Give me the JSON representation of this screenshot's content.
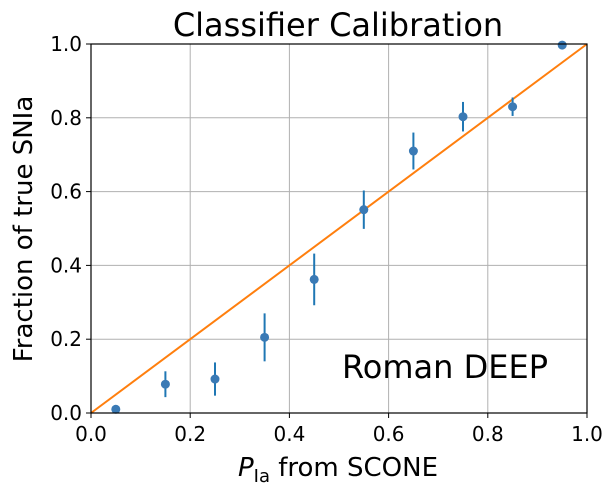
{
  "chart_data": {
    "type": "scatter",
    "title": "Classifier Calibration",
    "xlabel_symbol": "P",
    "xlabel_subscript": "Ia",
    "xlabel_rest": " from SCONE",
    "ylabel": "Fraction of true SNIa",
    "annotation": "Roman DEEP",
    "xlim": [
      0.0,
      1.0
    ],
    "ylim": [
      0.0,
      1.0
    ],
    "grid": true,
    "xticks": [
      "0.0",
      "0.2",
      "0.4",
      "0.6",
      "0.8",
      "1.0"
    ],
    "yticks": [
      "0.0",
      "0.2",
      "0.4",
      "0.6",
      "0.8",
      "1.0"
    ],
    "points": [
      {
        "x": 0.05,
        "y": 0.01,
        "err": 0.0
      },
      {
        "x": 0.15,
        "y": 0.078,
        "err": 0.035
      },
      {
        "x": 0.25,
        "y": 0.092,
        "err": 0.045
      },
      {
        "x": 0.35,
        "y": 0.205,
        "err": 0.065
      },
      {
        "x": 0.45,
        "y": 0.362,
        "err": 0.07
      },
      {
        "x": 0.55,
        "y": 0.551,
        "err": 0.052
      },
      {
        "x": 0.65,
        "y": 0.71,
        "err": 0.05
      },
      {
        "x": 0.75,
        "y": 0.803,
        "err": 0.04
      },
      {
        "x": 0.85,
        "y": 0.83,
        "err": 0.025
      },
      {
        "x": 0.95,
        "y": 0.997,
        "err": 0.0
      }
    ],
    "reference_line": {
      "x": [
        0.0,
        1.0
      ],
      "y": [
        0.0,
        1.0
      ]
    },
    "colors": {
      "points": "#3a7ab5",
      "errorbars": "#1f77b4",
      "reference_line": "#ff7f0e",
      "grid": "#b0b0b0"
    }
  }
}
